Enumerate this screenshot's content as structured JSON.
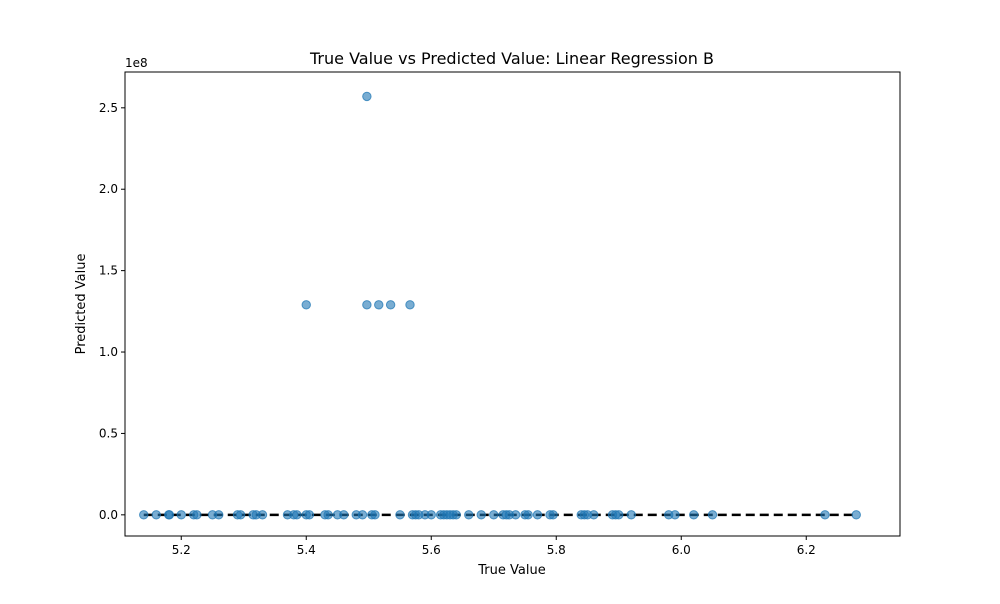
{
  "chart_data": {
    "type": "scatter",
    "title": "True Value vs Predicted Value: Linear Regression B",
    "xlabel": "True Value",
    "ylabel": "Predicted Value",
    "y_offset_label": "1e8",
    "xlim": [
      5.11,
      6.35
    ],
    "ylim": [
      -0.13,
      2.72
    ],
    "y_scale": 100000000.0,
    "x_ticks": [
      5.2,
      5.4,
      5.6,
      5.8,
      6.0,
      6.2
    ],
    "x_tick_labels": [
      "5.2",
      "5.4",
      "5.6",
      "5.8",
      "6.0",
      "6.2"
    ],
    "y_ticks": [
      0.0,
      0.5,
      1.0,
      1.5,
      2.0,
      2.5
    ],
    "y_tick_labels": [
      "0.0",
      "0.5",
      "1.0",
      "1.5",
      "2.0",
      "2.5"
    ],
    "grid": false,
    "colors": {
      "points": "#1f77b4",
      "reference_line": "#000000"
    },
    "reference_line": {
      "style": "dashed",
      "x": [
        5.14,
        6.28
      ],
      "y": [
        0,
        0
      ]
    },
    "points": [
      {
        "x": 5.497,
        "y": 2.57
      },
      {
        "x": 5.4,
        "y": 1.29
      },
      {
        "x": 5.497,
        "y": 1.29
      },
      {
        "x": 5.516,
        "y": 1.29
      },
      {
        "x": 5.535,
        "y": 1.29
      },
      {
        "x": 5.566,
        "y": 1.29
      },
      {
        "x": 5.14,
        "y": 0
      },
      {
        "x": 5.16,
        "y": 0
      },
      {
        "x": 5.18,
        "y": 0
      },
      {
        "x": 5.181,
        "y": 0
      },
      {
        "x": 5.2,
        "y": 0
      },
      {
        "x": 5.22,
        "y": 0
      },
      {
        "x": 5.225,
        "y": 0
      },
      {
        "x": 5.25,
        "y": 0
      },
      {
        "x": 5.26,
        "y": 0
      },
      {
        "x": 5.29,
        "y": 0
      },
      {
        "x": 5.295,
        "y": 0
      },
      {
        "x": 5.315,
        "y": 0
      },
      {
        "x": 5.32,
        "y": 0
      },
      {
        "x": 5.33,
        "y": 0
      },
      {
        "x": 5.37,
        "y": 0
      },
      {
        "x": 5.38,
        "y": 0
      },
      {
        "x": 5.385,
        "y": 0
      },
      {
        "x": 5.4,
        "y": 0
      },
      {
        "x": 5.405,
        "y": 0
      },
      {
        "x": 5.43,
        "y": 0
      },
      {
        "x": 5.435,
        "y": 0
      },
      {
        "x": 5.45,
        "y": 0
      },
      {
        "x": 5.46,
        "y": 0
      },
      {
        "x": 5.48,
        "y": 0
      },
      {
        "x": 5.49,
        "y": 0
      },
      {
        "x": 5.505,
        "y": 0
      },
      {
        "x": 5.51,
        "y": 0
      },
      {
        "x": 5.55,
        "y": 0
      },
      {
        "x": 5.57,
        "y": 0
      },
      {
        "x": 5.575,
        "y": 0
      },
      {
        "x": 5.58,
        "y": 0
      },
      {
        "x": 5.59,
        "y": 0
      },
      {
        "x": 5.6,
        "y": 0
      },
      {
        "x": 5.615,
        "y": 0
      },
      {
        "x": 5.62,
        "y": 0
      },
      {
        "x": 5.625,
        "y": 0
      },
      {
        "x": 5.63,
        "y": 0
      },
      {
        "x": 5.635,
        "y": 0
      },
      {
        "x": 5.64,
        "y": 0
      },
      {
        "x": 5.66,
        "y": 0
      },
      {
        "x": 5.68,
        "y": 0
      },
      {
        "x": 5.7,
        "y": 0
      },
      {
        "x": 5.715,
        "y": 0
      },
      {
        "x": 5.72,
        "y": 0
      },
      {
        "x": 5.725,
        "y": 0
      },
      {
        "x": 5.735,
        "y": 0
      },
      {
        "x": 5.75,
        "y": 0
      },
      {
        "x": 5.755,
        "y": 0
      },
      {
        "x": 5.77,
        "y": 0
      },
      {
        "x": 5.79,
        "y": 0
      },
      {
        "x": 5.795,
        "y": 0
      },
      {
        "x": 5.84,
        "y": 0
      },
      {
        "x": 5.845,
        "y": 0
      },
      {
        "x": 5.85,
        "y": 0
      },
      {
        "x": 5.86,
        "y": 0
      },
      {
        "x": 5.89,
        "y": 0
      },
      {
        "x": 5.895,
        "y": 0
      },
      {
        "x": 5.9,
        "y": 0
      },
      {
        "x": 5.92,
        "y": 0
      },
      {
        "x": 5.98,
        "y": 0
      },
      {
        "x": 5.99,
        "y": 0
      },
      {
        "x": 6.02,
        "y": 0
      },
      {
        "x": 6.05,
        "y": 0
      },
      {
        "x": 6.23,
        "y": 0
      },
      {
        "x": 6.28,
        "y": 0
      }
    ]
  }
}
